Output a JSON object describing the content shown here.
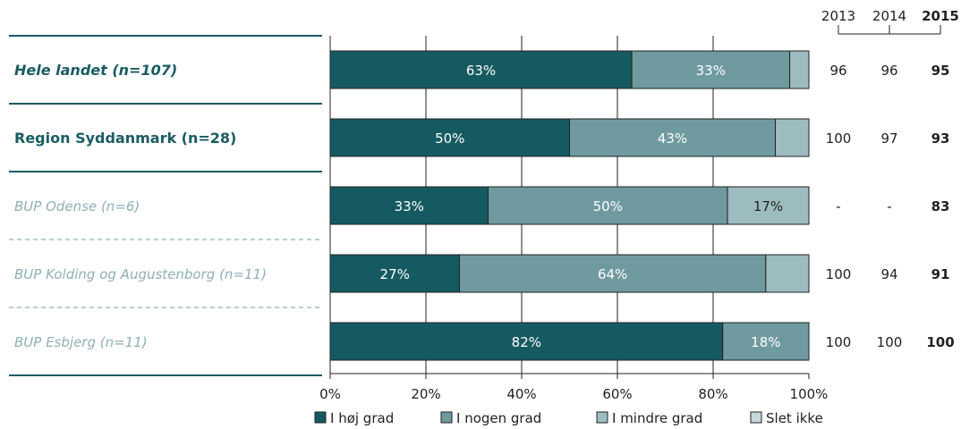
{
  "chart_data": {
    "type": "bar",
    "orientation": "horizontal",
    "stacked": true,
    "xlim": [
      0,
      100
    ],
    "xticks": [
      "0%",
      "20%",
      "40%",
      "60%",
      "80%",
      "100%"
    ],
    "grid": true,
    "legend_position": "bottom",
    "year_headers": [
      "2013",
      "2014",
      "2015"
    ],
    "series": [
      {
        "name": "I høj grad",
        "color": "#165a61"
      },
      {
        "name": "I nogen grad",
        "color": "#6f9aa0"
      },
      {
        "name": "I mindre grad",
        "color": "#9dbcbf"
      },
      {
        "name": "Slet ikke",
        "color": "#c7d9db"
      }
    ],
    "rows": [
      {
        "label": "Hele landet (n=107)",
        "style": "bolditalic",
        "values": [
          63,
          33,
          4,
          0
        ],
        "labels": [
          "63%",
          "33%",
          "",
          ""
        ],
        "years": [
          "96",
          "96",
          "95"
        ]
      },
      {
        "label": "Region Syddanmark (n=28)",
        "style": "bold",
        "values": [
          50,
          43,
          7,
          0
        ],
        "labels": [
          "50%",
          "43%",
          "",
          ""
        ],
        "years": [
          "100",
          "97",
          "93"
        ]
      },
      {
        "label": "BUP Odense (n=6)",
        "style": "italic",
        "values": [
          33,
          50,
          17,
          0
        ],
        "labels": [
          "33%",
          "50%",
          "17%",
          ""
        ],
        "years": [
          "-",
          "-",
          "83"
        ]
      },
      {
        "label": "BUP Kolding og Augustenborg (n=11)",
        "style": "italic",
        "values": [
          27,
          64,
          9,
          0
        ],
        "labels": [
          "27%",
          "64%",
          "",
          ""
        ],
        "years": [
          "100",
          "94",
          "91"
        ]
      },
      {
        "label": "BUP Esbjerg (n=11)",
        "style": "italic",
        "values": [
          82,
          18,
          0,
          0
        ],
        "labels": [
          "82%",
          "18%",
          "",
          ""
        ],
        "years": [
          "100",
          "100",
          "100"
        ]
      }
    ]
  }
}
